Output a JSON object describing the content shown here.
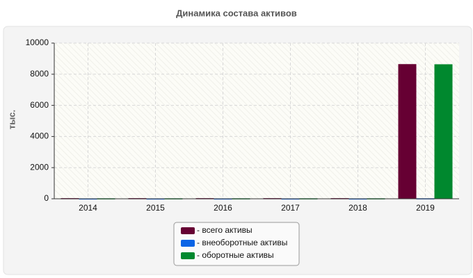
{
  "chart_data": {
    "type": "bar",
    "title": "Динамика состава активов",
    "y_label": "тыс.",
    "categories": [
      "2014",
      "2015",
      "2016",
      "2017",
      "2018",
      "2019"
    ],
    "series": [
      {
        "name": "- всего активы",
        "color": "#660033",
        "values": [
          40,
          40,
          40,
          40,
          40,
          8650
        ]
      },
      {
        "name": "- внеоборотные активы",
        "color": "#0a64e6",
        "values": [
          20,
          20,
          20,
          20,
          20,
          30
        ]
      },
      {
        "name": "- оборотные активы",
        "color": "#00882e",
        "values": [
          30,
          30,
          30,
          30,
          30,
          8640
        ]
      }
    ],
    "ylim": [
      0,
      10000
    ],
    "yticks": [
      0,
      2000,
      4000,
      6000,
      8000,
      10000
    ],
    "grid": true
  }
}
